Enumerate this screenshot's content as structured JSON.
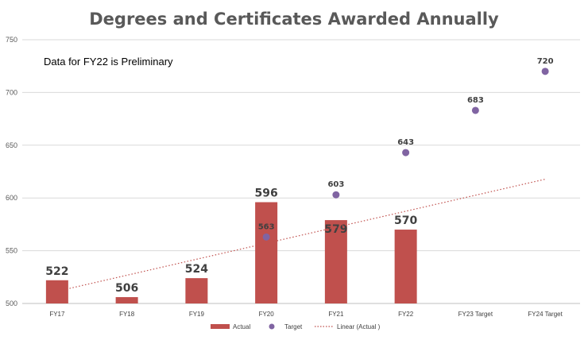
{
  "chart_data": {
    "type": "bar",
    "title": "Degrees and Certificates Awarded Annually",
    "annotation": "Data for FY22 is Preliminary",
    "categories": [
      "FY17",
      "FY18",
      "FY19",
      "FY20",
      "FY21",
      "FY22",
      "FY23 Target",
      "FY24 Target"
    ],
    "ylim": [
      500,
      750
    ],
    "yticks": [
      500,
      550,
      600,
      650,
      700,
      750
    ],
    "grid": true,
    "legend_position": "bottom",
    "series": [
      {
        "name": "Actual",
        "kind": "bar",
        "color": "#c0504d",
        "values": [
          522,
          506,
          524,
          596,
          579,
          570,
          null,
          null
        ]
      },
      {
        "name": "Target",
        "kind": "scatter",
        "color": "#8064a2",
        "values": [
          null,
          null,
          null,
          563,
          603,
          643,
          683,
          720
        ]
      },
      {
        "name": "Linear (Actual )",
        "kind": "trendline",
        "color": "#c0504d",
        "style": "dotted"
      }
    ]
  }
}
